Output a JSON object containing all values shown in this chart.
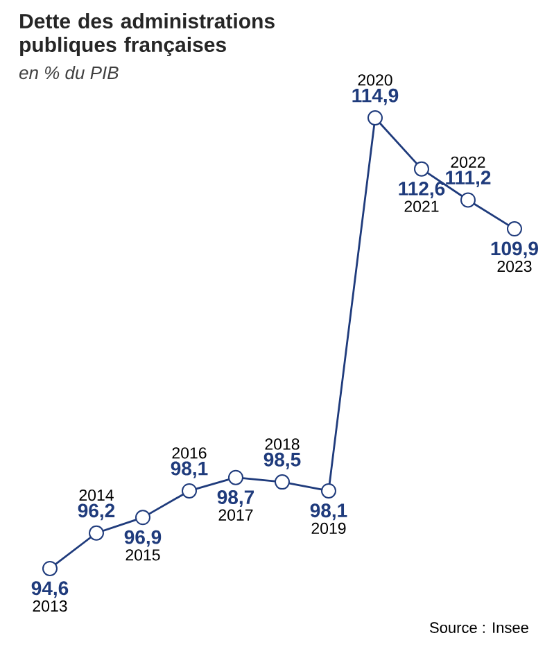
{
  "chart_data": {
    "type": "line",
    "title": "Dette des administrations publiques françaises",
    "subtitle": "en % du PIB",
    "categories": [
      "2013",
      "2014",
      "2015",
      "2016",
      "2017",
      "2018",
      "2019",
      "2020",
      "2021",
      "2022",
      "2023"
    ],
    "values": [
      94.6,
      96.2,
      96.9,
      98.1,
      98.7,
      98.5,
      98.1,
      114.9,
      112.6,
      111.2,
      109.9
    ],
    "value_labels": [
      "94,6",
      "96,2",
      "96,9",
      "98,1",
      "98,7",
      "98,5",
      "98,1",
      "114,9",
      "112,6",
      "111,2",
      "109,9"
    ],
    "color": "#1f3b7c",
    "marker": "circle",
    "annotations": [
      "Source : Insee"
    ]
  }
}
